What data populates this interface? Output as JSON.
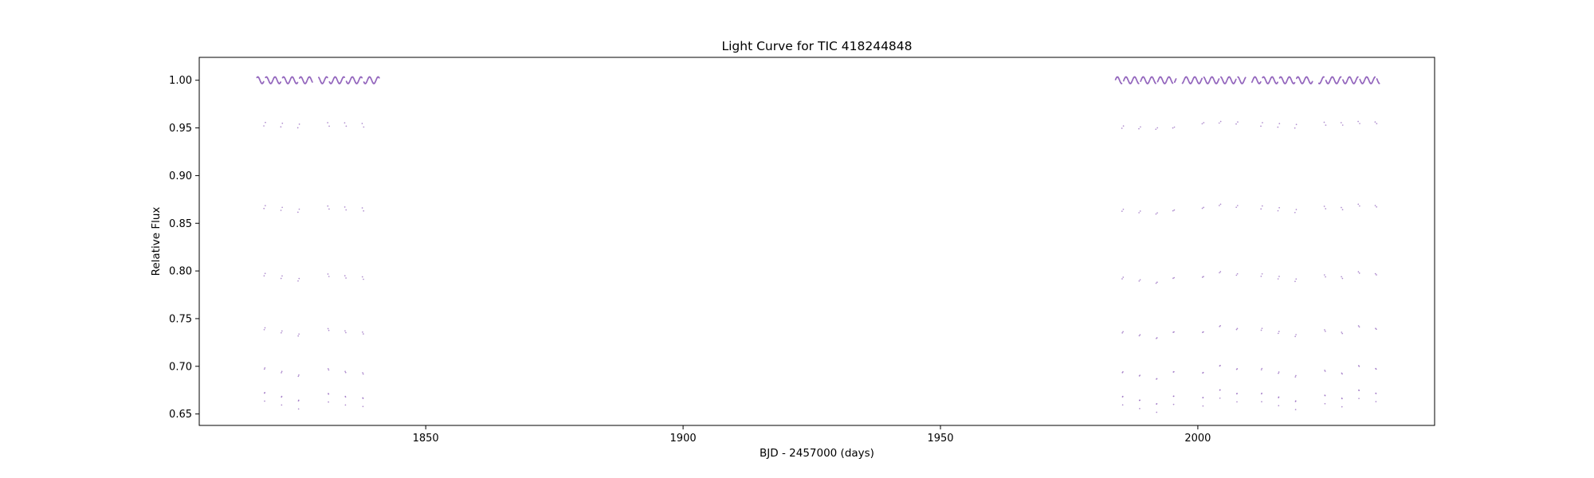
{
  "chart_data": {
    "type": "scatter",
    "title": "Light Curve for TIC 418244848",
    "xlabel": "BJD - 2457000 (days)",
    "ylabel": "Relative Flux",
    "xlim": [
      1806,
      2046
    ],
    "ylim": [
      0.638,
      1.024
    ],
    "xticks": [
      1850,
      1900,
      1950,
      2000
    ],
    "yticks": [
      0.65,
      0.7,
      0.75,
      0.8,
      0.85,
      0.9,
      0.95,
      1.0
    ],
    "ytick_labels": [
      "0.65",
      "0.70",
      "0.75",
      "0.80",
      "0.85",
      "0.90",
      "0.95",
      "1.00"
    ],
    "grid": false,
    "legend": "none",
    "point_color": "#9467bd",
    "series": [
      {
        "baseline": 1.0,
        "period_days": 1.67,
        "segments": [
          [
            1817.2,
            1828.0
          ],
          [
            1829.2,
            1841.0
          ],
          [
            1984.0,
            1995.8
          ],
          [
            1997.0,
            2009.3
          ],
          [
            2010.5,
            2022.3
          ],
          [
            2023.5,
            2035.3
          ]
        ],
        "eclipse_times": [
          1818.7,
          1822.0,
          1825.3,
          1831.1,
          1834.4,
          1837.8,
          1985.4,
          1988.7,
          1992.0,
          1995.3,
          2001.0,
          2004.3,
          2007.6,
          2012.4,
          2015.7,
          2019.0,
          2024.7,
          2028.0,
          2031.3,
          2034.6
        ],
        "minimum_depth": 0.655
      }
    ]
  }
}
